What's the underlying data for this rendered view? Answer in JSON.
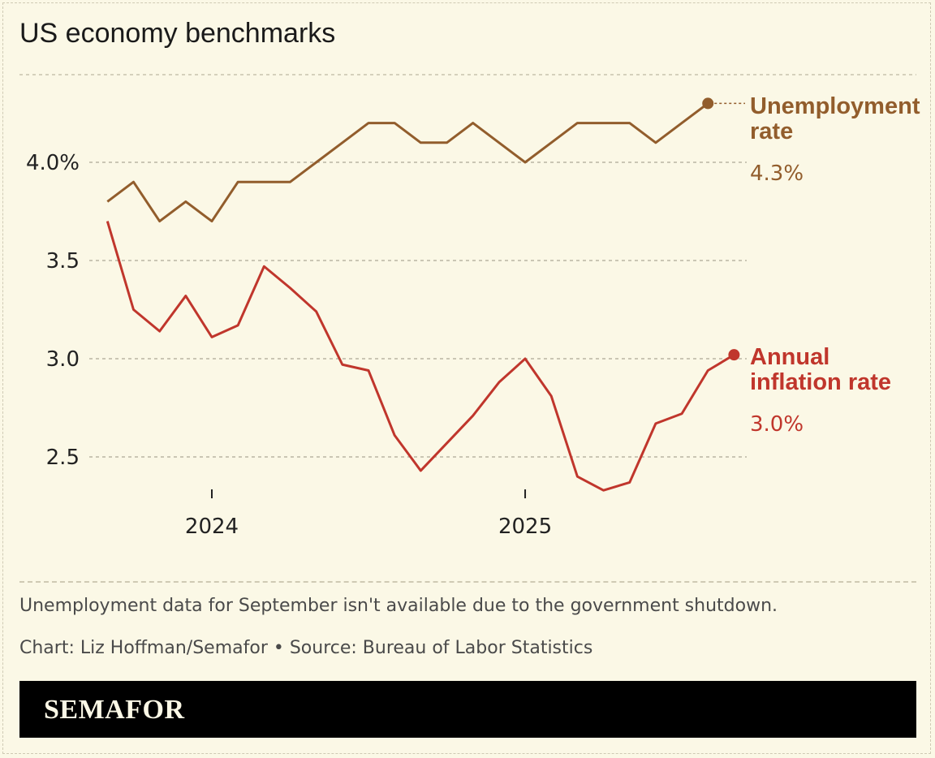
{
  "title": "US economy benchmarks",
  "chart_data": {
    "type": "line",
    "title": "US economy benchmarks",
    "xlabel": "",
    "ylabel": "",
    "ylim": [
      2.3,
      4.45
    ],
    "yticks": [
      4.0,
      3.5,
      3.0,
      2.5
    ],
    "ytick_labels": [
      "4.0%",
      "3.5",
      "3.0",
      "2.5"
    ],
    "xticks": [
      "2024",
      "2025"
    ],
    "grid": true,
    "legend": "direct labels at line ends (right)",
    "series": [
      {
        "name": "Unemployment rate",
        "label_lines": [
          "Unemployment",
          "rate"
        ],
        "end_label": "4.3%",
        "color": "#925d2c",
        "start": "2023-09",
        "values": [
          3.8,
          3.9,
          3.7,
          3.8,
          3.7,
          3.9,
          3.9,
          3.9,
          4.0,
          4.1,
          4.2,
          4.2,
          4.1,
          4.1,
          4.2,
          4.1,
          4.0,
          4.1,
          4.2,
          4.2,
          4.2,
          4.1,
          4.2,
          4.3
        ]
      },
      {
        "name": "Annual inflation rate",
        "label_lines": [
          "Annual",
          "inflation rate"
        ],
        "end_label": "3.0%",
        "color": "#c0362c",
        "start": "2023-09",
        "values": [
          3.7,
          3.25,
          3.14,
          3.32,
          3.11,
          3.17,
          3.47,
          3.36,
          3.24,
          2.97,
          2.94,
          2.61,
          2.43,
          2.57,
          2.71,
          2.88,
          3.0,
          2.81,
          2.4,
          2.33,
          2.37,
          2.67,
          2.72,
          2.94,
          3.02
        ]
      }
    ]
  },
  "note": "Unemployment data for September isn't available due to the government shutdown.",
  "credit": "Chart: Liz Hoffman/Semafor • Source: Bureau of Labor Statistics",
  "brand": "SEMAFOR"
}
